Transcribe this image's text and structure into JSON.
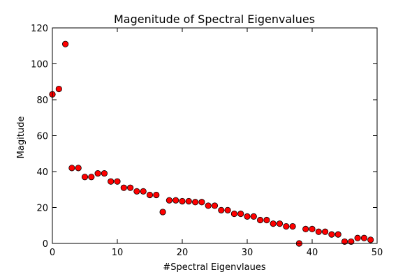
{
  "chart_data": {
    "type": "scatter",
    "title": "Magenitude of Spectral Eigenvalues",
    "xlabel": "#Spectral Eigenvlaues",
    "ylabel": "Magitude",
    "xlim": [
      0,
      50
    ],
    "ylim": [
      0,
      120
    ],
    "xticks": [
      "0",
      "10",
      "20",
      "30",
      "40",
      "50"
    ],
    "yticks": [
      "0",
      "20",
      "40",
      "60",
      "80",
      "100",
      "120"
    ],
    "grid": false,
    "marker_color": "#ff0000",
    "marker_edge_color": "#000000",
    "series": [
      {
        "x": [
          0,
          1,
          2,
          3,
          4,
          5,
          6,
          7,
          8,
          9,
          10,
          11,
          12,
          13,
          14,
          15,
          16,
          17,
          18,
          19,
          20,
          21,
          22,
          23,
          24,
          25,
          26,
          27,
          28,
          29,
          30,
          31,
          32,
          33,
          34,
          35,
          36,
          37,
          38,
          39,
          40,
          41,
          42,
          43,
          44,
          45,
          46,
          47,
          48,
          49
        ],
        "y": [
          83,
          86,
          111,
          42,
          42,
          37,
          37,
          39,
          39,
          34.5,
          34.5,
          31,
          31,
          29,
          29,
          27,
          27,
          17.5,
          24,
          24,
          23.5,
          23.5,
          23,
          23,
          21,
          21,
          18.5,
          18.5,
          16.5,
          16.5,
          15,
          15,
          13,
          13,
          11,
          11,
          9.5,
          9.5,
          0,
          8,
          8,
          6.5,
          6.5,
          5,
          5,
          1,
          1,
          3,
          3,
          2
        ]
      }
    ]
  }
}
